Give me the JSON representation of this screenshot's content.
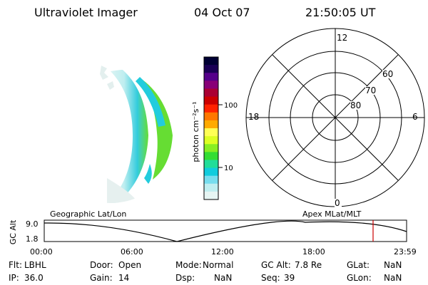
{
  "header": {
    "instrument": "Ultraviolet Imager",
    "date": "04 Oct 07",
    "time": "21:50:05 UT"
  },
  "colorbar": {
    "unit_label": "photon cm⁻²s⁻¹",
    "ticks": [
      "100",
      "10"
    ],
    "colors": [
      "#000033",
      "#1a0055",
      "#55008a",
      "#880077",
      "#aa0033",
      "#cc0000",
      "#ff2200",
      "#ff7700",
      "#ffaa00",
      "#ffff55",
      "#ddff22",
      "#88ee22",
      "#33dd33",
      "#22dd99",
      "#11ccdd",
      "#77ddee",
      "#bfeef0",
      "#e6f5f3"
    ]
  },
  "polar": {
    "mlt_labels": {
      "top": "12",
      "left": "18",
      "right": "6",
      "bottom": "0"
    },
    "lat_labels": [
      "60",
      "70",
      "80"
    ]
  },
  "timeline": {
    "left_caption": "Geographic Lat/Lon",
    "right_caption": "Apex MLat/MLT",
    "axis_label": "GC Alt",
    "y_ticks": [
      "9.0",
      "1.8"
    ],
    "x_ticks": [
      "00:00",
      "06:00",
      "12:00",
      "18:00",
      "23:59"
    ],
    "marker_color": "#cc0000"
  },
  "footer": {
    "row1": [
      {
        "label": "Flt:",
        "value": "LBHL"
      },
      {
        "label": "Door:",
        "value": "Open"
      },
      {
        "label": "Mode:",
        "value": "Normal"
      },
      {
        "label": "GC Alt:",
        "value": "7.8 Re"
      },
      {
        "label": "GLat:",
        "value": "NaN"
      }
    ],
    "row2": [
      {
        "label": "IP:",
        "value": "36.0"
      },
      {
        "label": "Gain:",
        "value": "14"
      },
      {
        "label": "Dsp:",
        "value": "NaN"
      },
      {
        "label": "Seq:",
        "value": "39"
      },
      {
        "label": "GLon:",
        "value": "NaN"
      }
    ]
  }
}
